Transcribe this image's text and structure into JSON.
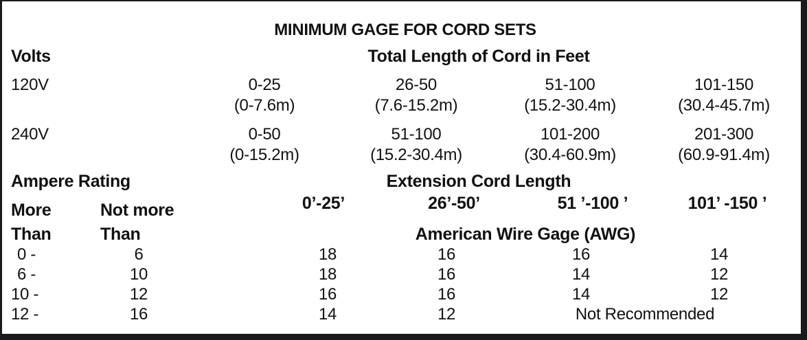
{
  "title": "MINIMUM GAGE FOR CORD SETS",
  "volts_label": "Volts",
  "total_length_label": "Total Length of Cord in Feet",
  "voltage_rows": [
    {
      "volts": "120V",
      "ranges": [
        {
          "ft": "0-25",
          "m": "(0-7.6m)"
        },
        {
          "ft": "26-50",
          "m": "(7.6-15.2m)"
        },
        {
          "ft": "51-100",
          "m": "(15.2-30.4m)"
        },
        {
          "ft": "101-150",
          "m": "(30.4-45.7m)"
        }
      ]
    },
    {
      "volts": "240V",
      "ranges": [
        {
          "ft": "0-50",
          "m": "(0-15.2m)"
        },
        {
          "ft": "51-100",
          "m": "(15.2-30.4m)"
        },
        {
          "ft": "101-200",
          "m": "(30.4-60.9m)"
        },
        {
          "ft": "201-300",
          "m": "(60.9-91.4m)"
        }
      ]
    }
  ],
  "ampere_rating_label": "Ampere Rating",
  "extension_cord_length_label": "Extension Cord Length",
  "more_than_label": [
    "More",
    "Than"
  ],
  "not_more_than_label": [
    "Not more",
    "Than"
  ],
  "length_columns": [
    "0’-25’",
    "26’-50’",
    "51 ’-100 ’",
    "101’ -150 ’"
  ],
  "awg_label": "American Wire Gage (AWG)",
  "gage_rows": [
    {
      "more_than": "0 -",
      "not_more_than": "6",
      "gages": [
        "18",
        "16",
        "16",
        "14"
      ]
    },
    {
      "more_than": "6 -",
      "not_more_than": "10",
      "gages": [
        "18",
        "16",
        "14",
        "12"
      ]
    },
    {
      "more_than": "10 -",
      "not_more_than": "12",
      "gages": [
        "16",
        "16",
        "14",
        "12"
      ]
    },
    {
      "more_than": "12 -",
      "not_more_than": "16",
      "gages": [
        "14",
        "12"
      ],
      "note": "Not Recommended"
    }
  ]
}
